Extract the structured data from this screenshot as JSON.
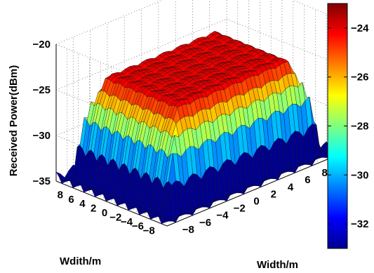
{
  "chart_data": {
    "type": "surface",
    "xlabel": "Width/m",
    "ylabel": "Wdith/m",
    "zlabel": "Received Power(dBm)",
    "x_ticks": [
      "−8",
      "−6",
      "−4",
      "−2",
      "0",
      "2",
      "4",
      "6",
      "8"
    ],
    "y_ticks": [
      "8",
      "6",
      "4",
      "2",
      "0",
      "−2",
      "−4",
      "−6",
      "−8"
    ],
    "z_ticks": [
      "−35",
      "−30",
      "−25",
      "−20"
    ],
    "colorbar_ticks": [
      "−24",
      "−26",
      "−28",
      "−30",
      "−32"
    ],
    "xlim": [
      -10,
      10
    ],
    "ylim": [
      -10,
      10
    ],
    "zlim": [
      -35,
      -20
    ],
    "color_range": [
      -33,
      -23
    ],
    "colormap": "jet",
    "grid": true,
    "colorbar_position": "right",
    "surface_profile": {
      "plateau_dBm": -23.8,
      "edge_dBm": -34,
      "ripple_period_m": 2,
      "plateau_half_width_m": 6,
      "edge_half_width_m": 9
    }
  }
}
